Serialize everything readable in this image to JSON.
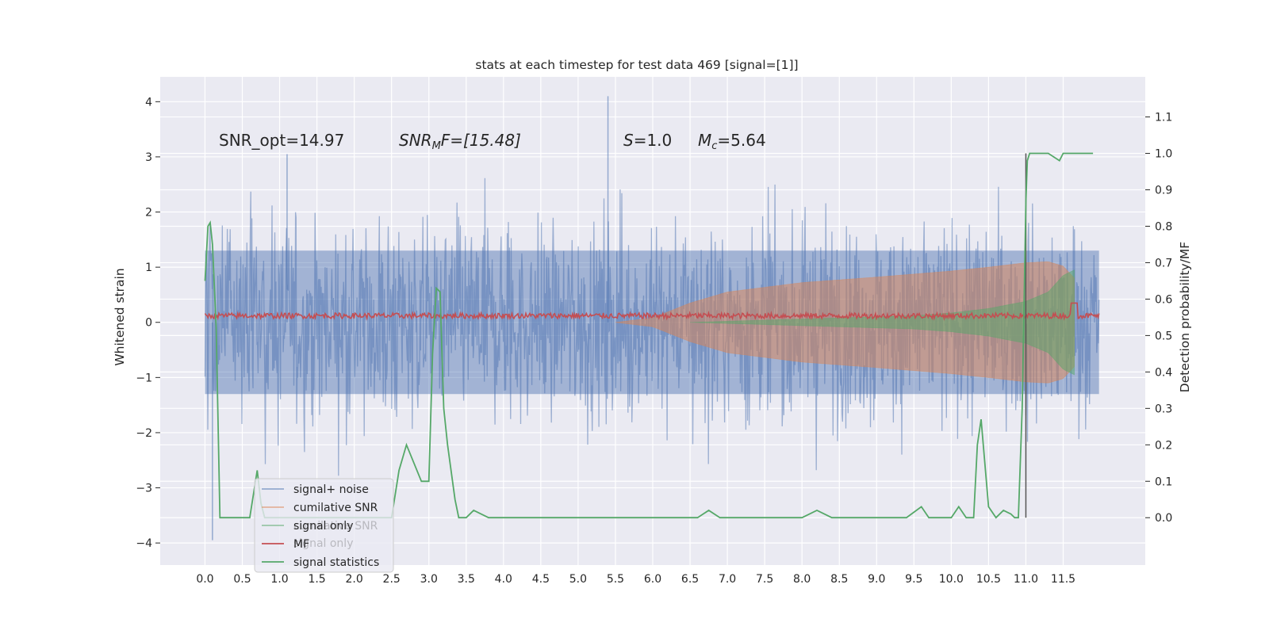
{
  "chart_data": {
    "type": "line",
    "title": "stats at each timestep for test data 469 [signal=[1]]",
    "xlabel": "",
    "ylabel": "Whitened strain",
    "ylabel_right": "Detection probability/MF",
    "xlim": [
      -0.6,
      12.6
    ],
    "ylim": [
      -4.4,
      4.45
    ],
    "ylim_right": [
      -0.13,
      1.21
    ],
    "grid": true,
    "x_ticks": [
      "0.0",
      "0.5",
      "1.0",
      "1.5",
      "2.0",
      "2.5",
      "3.0",
      "3.5",
      "4.0",
      "4.5",
      "5.0",
      "5.5",
      "6.0",
      "6.5",
      "7.0",
      "7.5",
      "8.0",
      "8.5",
      "9.0",
      "9.5",
      "10.0",
      "10.5",
      "11.0",
      "11.5"
    ],
    "y_ticks": [
      "4",
      "3",
      "2",
      "1",
      "0",
      "−1",
      "−2",
      "−3",
      "−4"
    ],
    "y_ticks_right": [
      "1.1",
      "1.0",
      "0.9",
      "0.8",
      "0.7",
      "0.6",
      "0.5",
      "0.4",
      "0.3",
      "0.2",
      "0.1",
      "0.0"
    ],
    "annotations": {
      "snr_opt": "SNR_opt=14.97",
      "snr_mf_sym": "SNR",
      "snr_mf_sub": "M",
      "snr_mf_rest": "F=[15.48]",
      "s_sym": "S",
      "s_val": "=1.0",
      "mc_sym": "M",
      "mc_sub": "c",
      "mc_val": "=5.64"
    },
    "legend": {
      "position": "lower-left",
      "entries": [
        {
          "label": "signal+ noise",
          "color": "#4c72b0"
        },
        {
          "label": "cumilative SNR",
          "color": "#dd8452"
        },
        {
          "label": "signal only",
          "color": "#55a868"
        },
        {
          "label": "MF",
          "color": "#c44e52"
        },
        {
          "label": "signal statistics",
          "color": "#55a868"
        }
      ],
      "ghost_labels": [
        "cumilative SNR",
        "signal only"
      ]
    },
    "series": [
      {
        "name": "signal+ noise",
        "color": "#4c72b0",
        "kind": "noise_band",
        "x_range": [
          0.0,
          11.98
        ],
        "core_amplitude": 1.3,
        "peak_max": 4.1,
        "peak_min": -3.95
      },
      {
        "name": "cumilative SNR",
        "color": "#dd8452",
        "kind": "envelope",
        "x": [
          5.5,
          6.0,
          6.5,
          7.0,
          8.0,
          9.0,
          10.0,
          10.5,
          11.0,
          11.3,
          11.5,
          11.65
        ],
        "amplitude": [
          0.0,
          0.08,
          0.35,
          0.55,
          0.72,
          0.82,
          0.93,
          1.0,
          1.08,
          1.1,
          1.02,
          0.8
        ]
      },
      {
        "name": "signal only",
        "color": "#55a868",
        "kind": "envelope",
        "x": [
          6.5,
          7.5,
          8.5,
          9.5,
          10.0,
          10.5,
          11.0,
          11.3,
          11.5,
          11.65
        ],
        "amplitude": [
          0.0,
          0.04,
          0.08,
          0.12,
          0.17,
          0.25,
          0.38,
          0.55,
          0.85,
          0.95
        ]
      },
      {
        "name": "MF",
        "color": "#c44e52",
        "kind": "noisy_line",
        "x_range": [
          0.0,
          11.98
        ],
        "base": 0.1,
        "amplitude": 0.1
      },
      {
        "name": "signal statistics",
        "color": "#55a868",
        "axis": "right",
        "x": [
          0.0,
          0.04,
          0.07,
          0.1,
          0.15,
          0.2,
          0.28,
          0.35,
          0.5,
          0.6,
          0.7,
          0.75,
          0.8,
          0.9,
          1.0,
          1.2,
          1.5,
          1.8,
          2.0,
          2.2,
          2.4,
          2.5,
          2.6,
          2.7,
          2.8,
          2.9,
          3.0,
          3.05,
          3.1,
          3.15,
          3.2,
          3.25,
          3.35,
          3.4,
          3.5,
          3.6,
          3.8,
          4.0,
          4.5,
          5.0,
          6.0,
          6.6,
          6.75,
          6.9,
          7.0,
          8.0,
          8.2,
          8.4,
          8.5,
          9.0,
          9.4,
          9.6,
          9.7,
          10.0,
          10.1,
          10.2,
          10.3,
          10.35,
          10.4,
          10.5,
          10.6,
          10.7,
          10.8,
          10.85,
          10.9,
          10.95,
          11.0,
          11.02,
          11.05,
          11.1,
          11.15,
          11.2,
          11.3,
          11.45,
          11.5,
          11.6,
          11.7,
          11.9
        ],
        "values": [
          0.65,
          0.8,
          0.81,
          0.75,
          0.52,
          0.0,
          0.0,
          0.0,
          0.0,
          0.0,
          0.13,
          0.04,
          0.0,
          0.0,
          0.0,
          0.0,
          0.0,
          0.0,
          0.0,
          0.0,
          0.0,
          0.0,
          0.13,
          0.2,
          0.15,
          0.1,
          0.1,
          0.45,
          0.63,
          0.62,
          0.3,
          0.2,
          0.05,
          0.0,
          0.0,
          0.02,
          0.0,
          0.0,
          0.0,
          0.0,
          0.0,
          0.0,
          0.02,
          0.0,
          0.0,
          0.0,
          0.02,
          0.0,
          0.0,
          0.0,
          0.0,
          0.03,
          0.0,
          0.0,
          0.03,
          0.0,
          0.0,
          0.2,
          0.27,
          0.03,
          0.0,
          0.02,
          0.01,
          0.0,
          0.0,
          0.3,
          0.87,
          0.98,
          1.0,
          1.0,
          1.0,
          1.0,
          1.0,
          0.98,
          1.0,
          1.0,
          1.0,
          1.0
        ]
      }
    ],
    "vertical_line_x": 11.0
  }
}
